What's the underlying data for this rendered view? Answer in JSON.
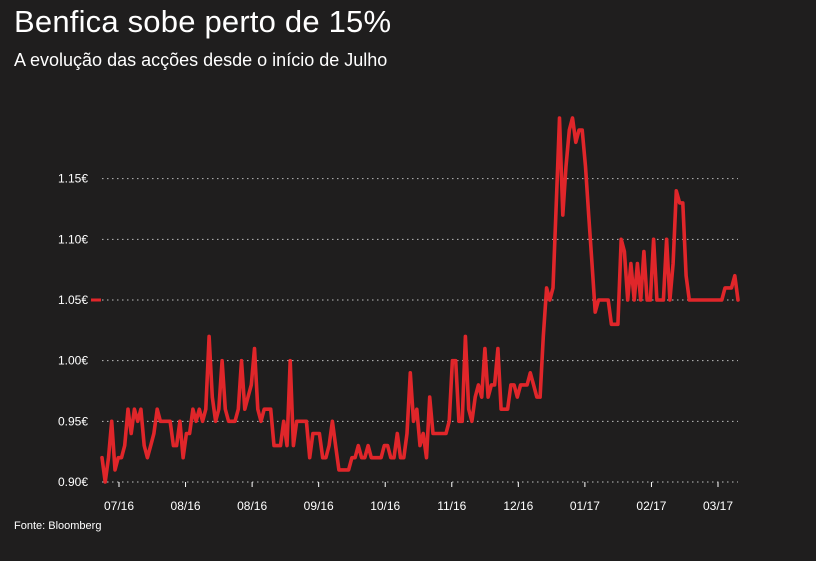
{
  "title": "Benfica sobe perto de 15%",
  "subtitle": "A evolução das acções desde o início de Julho",
  "source": "Fonte: Bloomberg",
  "colors": {
    "background": "#1f1e1e",
    "line": "#e0262a",
    "grid": "#bdbdbd",
    "text": "#ffffff"
  },
  "chart_data": {
    "type": "line",
    "title": "Benfica sobe perto de 15%",
    "subtitle": "A evolução das acções desde o início de Julho",
    "ylim": [
      0.9,
      1.2
    ],
    "yticks": [
      0.9,
      0.95,
      1.0,
      1.05,
      1.1,
      1.15
    ],
    "ytick_labels": [
      "0.90€",
      "0.95€",
      "1.00€",
      "1.05€",
      "1.10€",
      "1.15€"
    ],
    "xticks": [
      "07/16",
      "08/16",
      "08/16",
      "09/16",
      "10/16",
      "11/16",
      "12/16",
      "01/17",
      "02/17",
      "03/17"
    ],
    "grid": true,
    "last_value_marker": 1.05,
    "series": [
      {
        "values": [
          0.92,
          0.9,
          0.92,
          0.95,
          0.91,
          0.92,
          0.92,
          0.93,
          0.96,
          0.94,
          0.96,
          0.95,
          0.96,
          0.93,
          0.92,
          0.93,
          0.94,
          0.96,
          0.95,
          0.95,
          0.95,
          0.95,
          0.93,
          0.93,
          0.95,
          0.92,
          0.94,
          0.94,
          0.96,
          0.95,
          0.96,
          0.95,
          0.96,
          1.02,
          0.97,
          0.95,
          0.96,
          1.0,
          0.96,
          0.95,
          0.95,
          0.95,
          0.96,
          1.0,
          0.96,
          0.97,
          0.98,
          1.01,
          0.96,
          0.95,
          0.96,
          0.96,
          0.96,
          0.93,
          0.93,
          0.93,
          0.95,
          0.93,
          1.0,
          0.93,
          0.95,
          0.95,
          0.95,
          0.95,
          0.92,
          0.94,
          0.94,
          0.94,
          0.92,
          0.92,
          0.93,
          0.95,
          0.93,
          0.91,
          0.91,
          0.91,
          0.91,
          0.92,
          0.92,
          0.93,
          0.92,
          0.92,
          0.93,
          0.92,
          0.92,
          0.92,
          0.92,
          0.93,
          0.93,
          0.92,
          0.92,
          0.94,
          0.92,
          0.92,
          0.94,
          0.99,
          0.95,
          0.96,
          0.93,
          0.94,
          0.92,
          0.97,
          0.94,
          0.94,
          0.94,
          0.94,
          0.94,
          0.95,
          1.0,
          1.0,
          0.95,
          0.95,
          1.02,
          0.96,
          0.95,
          0.97,
          0.98,
          0.97,
          1.01,
          0.97,
          0.98,
          0.98,
          1.01,
          0.96,
          0.96,
          0.96,
          0.98,
          0.98,
          0.97,
          0.98,
          0.98,
          0.98,
          0.99,
          0.98,
          0.97,
          0.97,
          1.02,
          1.06,
          1.05,
          1.06,
          1.13,
          1.2,
          1.12,
          1.16,
          1.19,
          1.2,
          1.18,
          1.19,
          1.19,
          1.16,
          1.12,
          1.08,
          1.04,
          1.05,
          1.05,
          1.05,
          1.05,
          1.03,
          1.03,
          1.03,
          1.1,
          1.09,
          1.05,
          1.08,
          1.05,
          1.08,
          1.05,
          1.09,
          1.05,
          1.05,
          1.1,
          1.05,
          1.05,
          1.05,
          1.1,
          1.05,
          1.08,
          1.14,
          1.13,
          1.13,
          1.07,
          1.05,
          1.05,
          1.05,
          1.05,
          1.05,
          1.05,
          1.05,
          1.05,
          1.05,
          1.05,
          1.05,
          1.06,
          1.06,
          1.06,
          1.07,
          1.05
        ]
      }
    ]
  }
}
